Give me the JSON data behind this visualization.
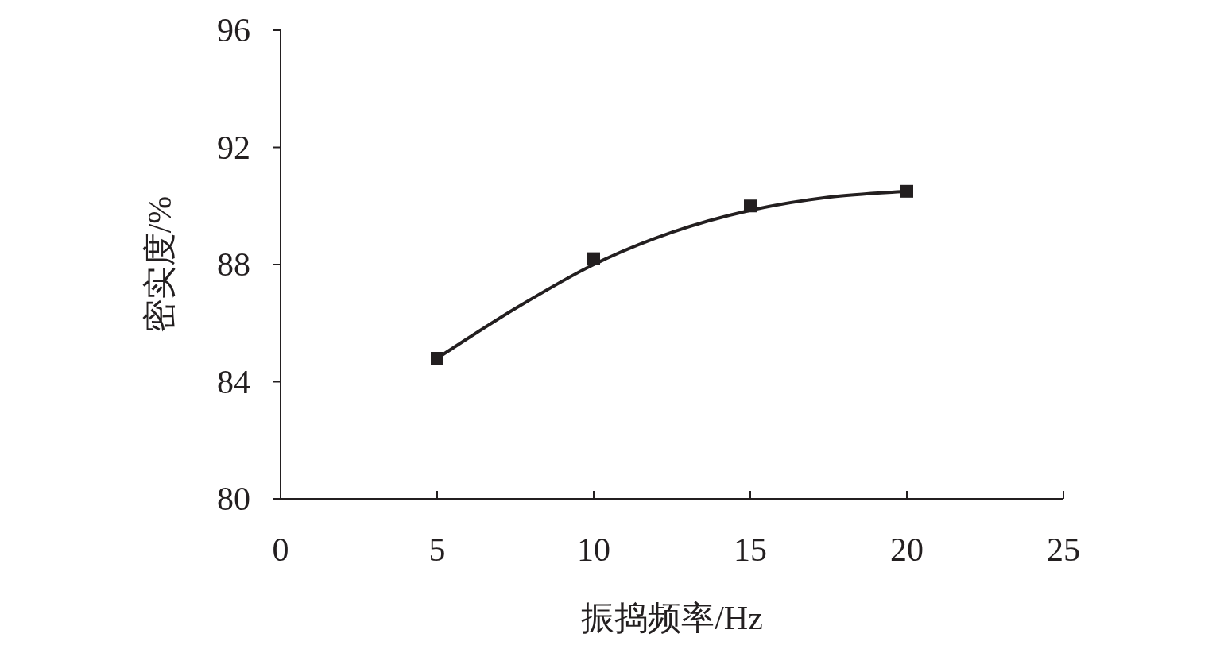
{
  "chart_data": {
    "type": "scatter",
    "xlabel": "振捣频率/Hz",
    "ylabel": "密实度/%",
    "xlim": [
      0,
      25
    ],
    "xticks": [
      0,
      5,
      10,
      15,
      20,
      25
    ],
    "ylim": [
      80,
      96
    ],
    "yticks": [
      80,
      84,
      88,
      92,
      96
    ],
    "series": [
      {
        "type": "scatter",
        "color": "#231f20",
        "marker": "square",
        "x": [
          5,
          10,
          15,
          20
        ],
        "values": [
          84.8,
          88.2,
          90.0,
          90.5
        ]
      },
      {
        "type": "line",
        "color": "#231f20",
        "marker": "none",
        "line_style": "solid",
        "x": [
          5,
          7.5,
          10,
          12.5,
          15,
          17.5,
          20
        ],
        "values": [
          84.8,
          86.5,
          88.0,
          89.1,
          89.85,
          90.3,
          90.5
        ]
      }
    ]
  }
}
